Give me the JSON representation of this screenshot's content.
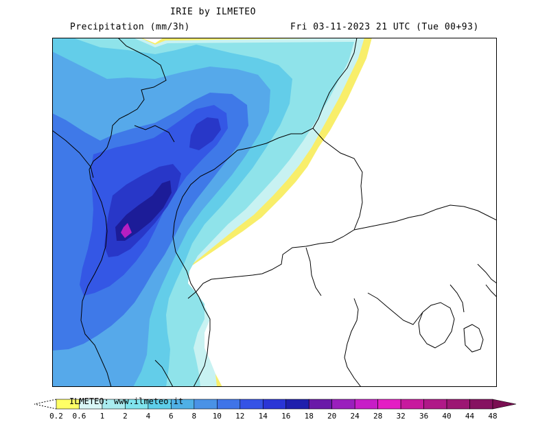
{
  "header": {
    "title": "IRIE by ILMETEO",
    "subtitle": "Precipitation (mm/3h)",
    "run_info": "Fri 03-11-2023 21 UTC (Tue 00+93)"
  },
  "legend": {
    "credit": "ILMETEO: www.ilmeteo.it",
    "levels": [
      "0.2",
      "0.6",
      "1",
      "2",
      "4",
      "6",
      "8",
      "10",
      "12",
      "14",
      "16",
      "18",
      "20",
      "24",
      "28",
      "32",
      "36",
      "40",
      "44",
      "48"
    ],
    "colors": [
      "#ffff66",
      "#d9f7f7",
      "#a9ecf0",
      "#80e4ee",
      "#5ecfea",
      "#4fb0e6",
      "#4a92e6",
      "#3f74e8",
      "#3553e6",
      "#2a35d6",
      "#1f1fad",
      "#6a1aa8",
      "#9a1fbd",
      "#c71ec7",
      "#e41ec4",
      "#c81a9e",
      "#b01888",
      "#9c1673",
      "#861261",
      "#7a0f52"
    ]
  },
  "map": {
    "colors": {
      "yellow": "#f8ee6a",
      "pale": "#c8f2f2",
      "light_cyan": "#8fe3ea",
      "cyan": "#63cde9",
      "light_blue": "#56a9ea",
      "blue": "#3f79e8",
      "mid_blue": "#3457e5",
      "deep_blue": "#2837c8",
      "navy": "#1c1c98",
      "magenta": "#b61fc2"
    }
  }
}
